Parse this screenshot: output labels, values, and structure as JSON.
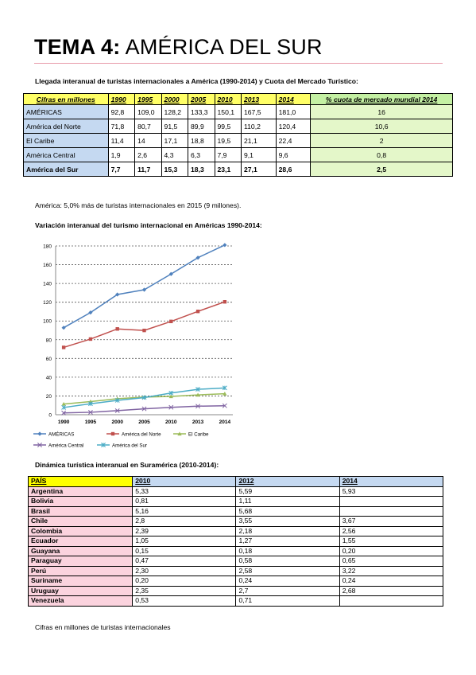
{
  "page_title": {
    "bold": "TEMA 4:",
    "rest": " AMÉRICA DEL SUR"
  },
  "table1": {
    "caption": "Llegada interanual de turistas internacionales a América (1990-2014) y Cuota del Mercado Turístico:",
    "headers": [
      "Cifras en millones",
      "1990",
      "1995",
      "2000",
      "2005",
      "2010",
      "2013",
      "2014",
      "% cuota de mercado mundial 2014"
    ],
    "rows": [
      {
        "name": "AMÉRICAS",
        "values": [
          "92,8",
          "109,0",
          "128,2",
          "133,3",
          "150,1",
          "167,5",
          "181,0"
        ],
        "share": "16"
      },
      {
        "name": "América del Norte",
        "values": [
          "71,8",
          "80,7",
          "91,5",
          "89,9",
          "99,5",
          "110,2",
          "120,4"
        ],
        "share": "10,6"
      },
      {
        "name": "El Caribe",
        "values": [
          "11,4",
          "14",
          "17,1",
          "18,8",
          "19,5",
          "21,1",
          "22,4"
        ],
        "share": "2"
      },
      {
        "name": "América Central",
        "values": [
          "1,9",
          "2,6",
          "4,3",
          "6,3",
          "7,9",
          "9,1",
          "9,6"
        ],
        "share": "0,8"
      },
      {
        "name": "América del Sur",
        "values": [
          "7,7",
          "11,7",
          "15,3",
          "18,3",
          "23,1",
          "27,1",
          "28,6"
        ],
        "share": "2,5"
      }
    ]
  },
  "note_2015": "América: 5,0% más de turistas internacionales en 2015 (9 millones).",
  "chart_caption": "Variación interanual del turismo internacional en Américas 1990-2014:",
  "chart_data": {
    "type": "line",
    "categories": [
      "1990",
      "1995",
      "2000",
      "2005",
      "2010",
      "2013",
      "2014"
    ],
    "ylim": [
      0,
      180
    ],
    "yticks": [
      0,
      20,
      40,
      60,
      80,
      100,
      120,
      140,
      160,
      180
    ],
    "grid": "horizontal dashed",
    "legend": "bottom",
    "series": [
      {
        "name": "AMÉRICAS",
        "color": "#4f81bd",
        "marker": "diamond",
        "values": [
          92.8,
          109.0,
          128.2,
          133.3,
          150.1,
          167.5,
          181.0
        ]
      },
      {
        "name": "América del Norte",
        "color": "#c0504d",
        "marker": "square",
        "values": [
          71.8,
          80.7,
          91.5,
          89.9,
          99.5,
          110.2,
          120.4
        ]
      },
      {
        "name": "El Caribe",
        "color": "#9bbb59",
        "marker": "triangle",
        "values": [
          11.4,
          14,
          17.1,
          18.8,
          19.5,
          21.1,
          22.4
        ]
      },
      {
        "name": "América Central",
        "color": "#8064a2",
        "marker": "x",
        "values": [
          1.9,
          2.6,
          4.3,
          6.3,
          7.9,
          9.1,
          9.6
        ]
      },
      {
        "name": "América del Sur",
        "color": "#4bacc6",
        "marker": "star",
        "values": [
          7.7,
          11.7,
          15.3,
          18.3,
          23.1,
          27.1,
          28.6
        ]
      }
    ]
  },
  "table2": {
    "caption": "Dinámica turística interanual en Suramérica (2010-2014):",
    "headers": [
      "PAÍS",
      "2010",
      "2012",
      "2014"
    ],
    "rows": [
      [
        "Argentina",
        "5,33",
        "5,59",
        "5,93"
      ],
      [
        "Bolivia",
        "0,81",
        "1,11",
        ""
      ],
      [
        "Brasil",
        "5,16",
        "5,68",
        ""
      ],
      [
        "Chile",
        "2,8",
        "3,55",
        "3,67"
      ],
      [
        "Colombia",
        "2,39",
        "2,18",
        "2,56"
      ],
      [
        "Ecuador",
        "1,05",
        "1,27",
        "1,55"
      ],
      [
        "Guayana",
        "0,15",
        "0,18",
        "0,20"
      ],
      [
        "Paraguay",
        "0,47",
        "0,58",
        "0,65"
      ],
      [
        "Perú",
        "2,30",
        "2,58",
        "3,22"
      ],
      [
        "Suriname",
        "0,20",
        "0,24",
        "0,24"
      ],
      [
        "Uruguay",
        "2,35",
        "2,7",
        "2,68"
      ],
      [
        "Venezuela",
        "0,53",
        "0,71",
        ""
      ]
    ],
    "footnote": "Cifras en millones de turistas internacionales"
  }
}
